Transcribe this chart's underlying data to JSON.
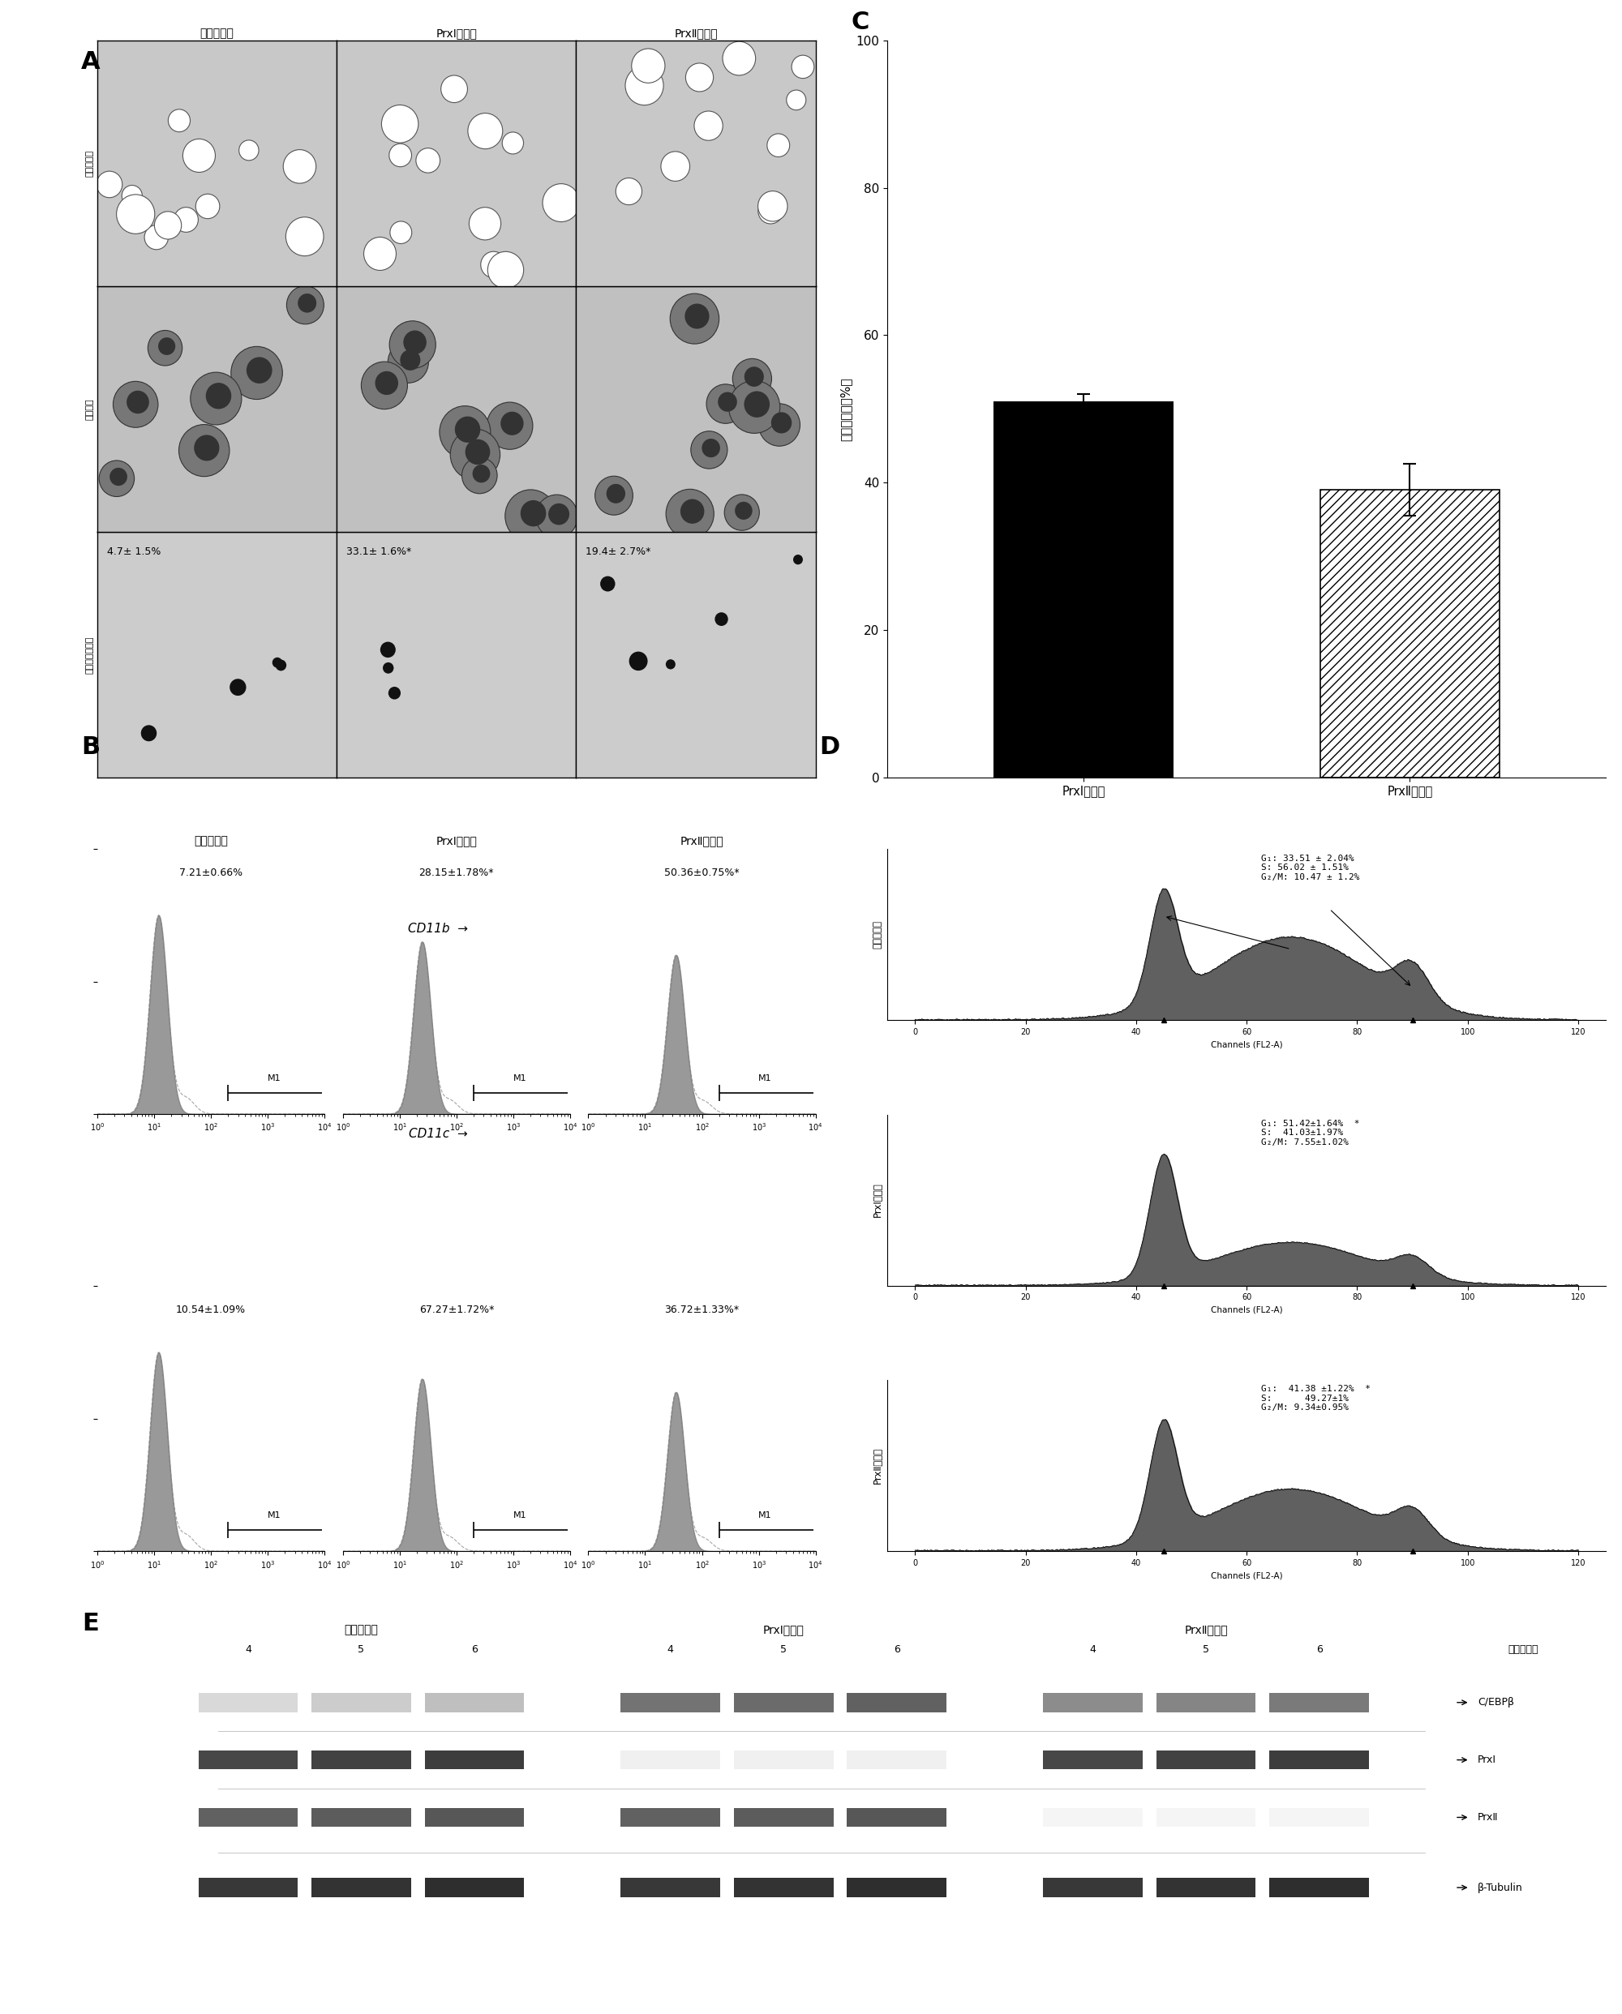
{
  "panel_C_categories": [
    "PrxⅠ敖除组",
    "PrxⅡ敖除组"
  ],
  "panel_C_values": [
    51.0,
    39.0
  ],
  "panel_C_errors": [
    1.0,
    3.5
  ],
  "panel_C_ylabel": "生长抑制率（%）",
  "panel_B_col_labels": [
    "无关敖除组",
    "PrxⅠ敖除组",
    "PrxⅡ敖除组"
  ],
  "panel_B_row1_pcts": [
    "7.21±0.66%",
    "28.15±1.78%*",
    "50.36±0.75%*"
  ],
  "panel_B_row2_pcts": [
    "10.54±1.09%",
    "67.27±1.72%*",
    "36.72±1.33%*"
  ],
  "panel_B_xlabel_row1": "CD11b",
  "panel_B_xlabel_row2": "CD11c",
  "panel_D_row_labels": [
    "无关敖除组",
    "PrxⅠ敖除组",
    "PrxⅡ敖除组"
  ],
  "panel_D_annots": [
    "G₁: 33.51 ± 2.04%\nS: 56.02 ± 1.51%\nG₂/M: 10.47 ± 1.2%",
    "G₁: 51.42±1.64%  *\nS:  41.03±1.97%\nG₂/M: 7.55±1.02%",
    "G₁:  41.38 ±1.22%  *\nS:      49.27±1%\nG₂/M: 9.34±0.95%"
  ],
  "panel_A_col_headers": [
    "无关敖除组",
    "PrxⅠ敖除组",
    "PrxⅡ敖除组"
  ],
  "panel_A_row_labels": [
    "相差显微镜",
    "瑞氏染色",
    "碲酸四氮蓝试验"
  ],
  "panel_A_nbt_pcts": [
    "4.7± 1.5%",
    "33.1± 1.6%*",
    "19.4± 2.7%*"
  ],
  "panel_E_groups": [
    "无关敖除组",
    "PrxⅠ敖除组",
    "PrxⅡ敖除组"
  ],
  "panel_E_timepoints": [
    "4",
    "5",
    "6"
  ],
  "panel_E_bands": [
    "C/EBPβ",
    "PrxⅠ",
    "PrxⅡ",
    "β-Tubulin"
  ],
  "panel_E_right_label": "感染后天数"
}
